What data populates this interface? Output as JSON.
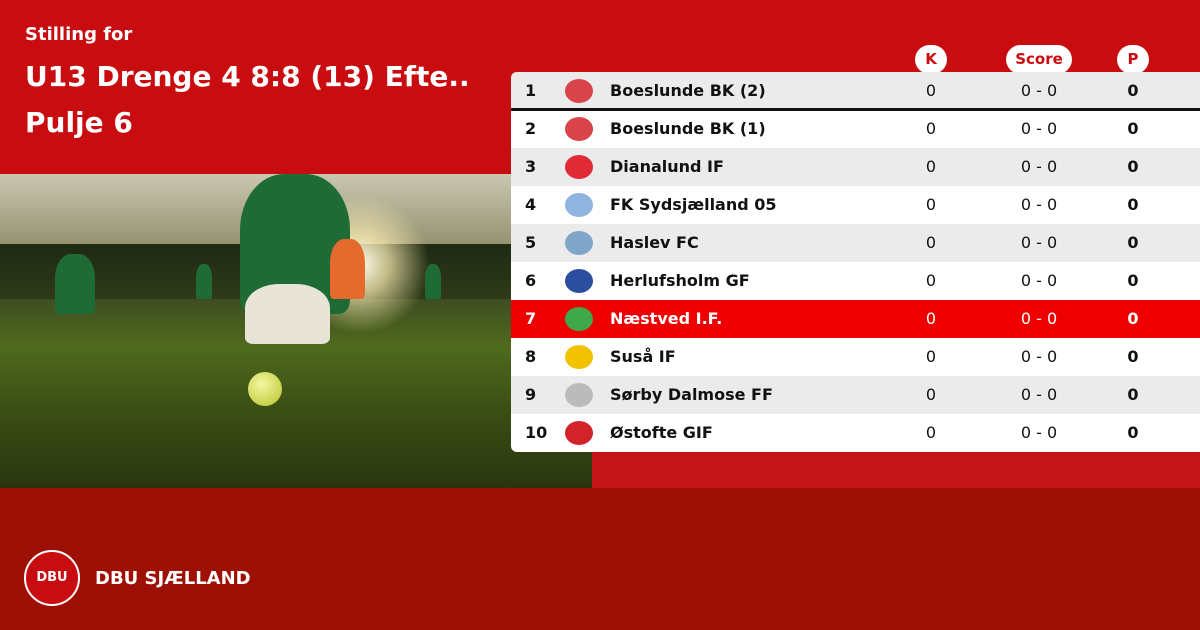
{
  "header": {
    "subtitle": "Stilling for",
    "title": "U13 Drenge 4 8:8 (13) Efte..",
    "pool": "Pulje 6"
  },
  "columns": {
    "k": "K",
    "score": "Score",
    "p": "P"
  },
  "rows": [
    {
      "pos": "1",
      "team": "Boeslunde BK (2)",
      "k": "0",
      "score": "0 - 0",
      "p": "0",
      "logo_color": "#d9434a"
    },
    {
      "pos": "2",
      "team": "Boeslunde BK (1)",
      "k": "0",
      "score": "0 - 0",
      "p": "0",
      "logo_color": "#d9434a"
    },
    {
      "pos": "3",
      "team": "Dianalund IF",
      "k": "0",
      "score": "0 - 0",
      "p": "0",
      "logo_color": "#e02a36"
    },
    {
      "pos": "4",
      "team": "FK Sydsjælland 05",
      "k": "0",
      "score": "0 - 0",
      "p": "0",
      "logo_color": "#8fb4e0"
    },
    {
      "pos": "5",
      "team": "Haslev FC",
      "k": "0",
      "score": "0 - 0",
      "p": "0",
      "logo_color": "#7fa6c9"
    },
    {
      "pos": "6",
      "team": "Herlufsholm GF",
      "k": "0",
      "score": "0 - 0",
      "p": "0",
      "logo_color": "#2b4f9e"
    },
    {
      "pos": "7",
      "team": "Næstved I.F.",
      "k": "0",
      "score": "0 - 0",
      "p": "0",
      "logo_color": "#3ea84a",
      "highlighted": true
    },
    {
      "pos": "8",
      "team": "Suså IF",
      "k": "0",
      "score": "0 - 0",
      "p": "0",
      "logo_color": "#f2c200"
    },
    {
      "pos": "9",
      "team": "Sørby Dalmose FF",
      "k": "0",
      "score": "0 - 0",
      "p": "0",
      "logo_color": "#bbbbbb"
    },
    {
      "pos": "10",
      "team": "Østofte GIF",
      "k": "0",
      "score": "0 - 0",
      "p": "0",
      "logo_color": "#d2232a"
    }
  ],
  "footer": {
    "brand": "DBU SJÆLLAND",
    "logo_text": "DBU"
  },
  "colors": {
    "primary": "#c90c0f",
    "footer": "#9e1006",
    "highlight": "#ee0000"
  }
}
